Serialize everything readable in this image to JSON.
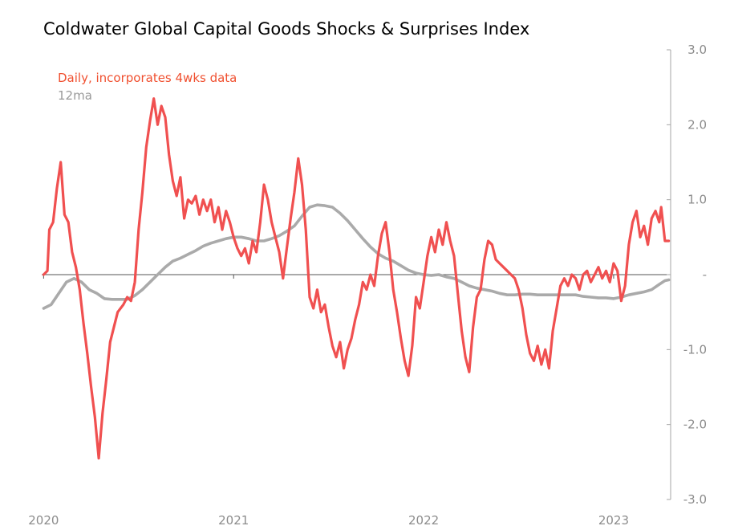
{
  "chart_data": {
    "type": "line",
    "title": "Coldwater Global Capital Goods Shocks & Surprises Index",
    "xlabel": "",
    "ylabel": "",
    "ylim": [
      -3.0,
      3.0
    ],
    "y_ticks": [
      "3.0",
      "2.0",
      "1.0",
      "-",
      "-1.0",
      "-2.0",
      "-3.0"
    ],
    "y_tick_values": [
      3,
      2,
      1,
      0,
      -1,
      -2,
      -3
    ],
    "x_ticks": [
      "2020",
      "2021",
      "2022",
      "2023"
    ],
    "x_tick_values": [
      2020.0,
      2021.0,
      2022.0,
      2023.0
    ],
    "xlim": [
      2019.99,
      2023.3
    ],
    "series": [
      {
        "name": "Daily, incorporates 4wks data",
        "color": "#f05050",
        "points": [
          [
            2020.0,
            0.0
          ],
          [
            2020.02,
            0.05
          ],
          [
            2020.03,
            0.6
          ],
          [
            2020.05,
            0.7
          ],
          [
            2020.07,
            1.15
          ],
          [
            2020.09,
            1.5
          ],
          [
            2020.11,
            0.8
          ],
          [
            2020.13,
            0.7
          ],
          [
            2020.15,
            0.3
          ],
          [
            2020.17,
            0.1
          ],
          [
            2020.19,
            -0.2
          ],
          [
            2020.21,
            -0.65
          ],
          [
            2020.23,
            -1.05
          ],
          [
            2020.25,
            -1.5
          ],
          [
            2020.27,
            -1.9
          ],
          [
            2020.29,
            -2.45
          ],
          [
            2020.31,
            -1.85
          ],
          [
            2020.33,
            -1.4
          ],
          [
            2020.35,
            -0.9
          ],
          [
            2020.37,
            -0.7
          ],
          [
            2020.39,
            -0.5
          ],
          [
            2020.42,
            -0.4
          ],
          [
            2020.44,
            -0.3
          ],
          [
            2020.46,
            -0.35
          ],
          [
            2020.48,
            -0.1
          ],
          [
            2020.5,
            0.6
          ],
          [
            2020.52,
            1.1
          ],
          [
            2020.54,
            1.7
          ],
          [
            2020.56,
            2.05
          ],
          [
            2020.58,
            2.35
          ],
          [
            2020.6,
            2.0
          ],
          [
            2020.62,
            2.25
          ],
          [
            2020.64,
            2.1
          ],
          [
            2020.66,
            1.6
          ],
          [
            2020.68,
            1.25
          ],
          [
            2020.7,
            1.05
          ],
          [
            2020.72,
            1.3
          ],
          [
            2020.74,
            0.75
          ],
          [
            2020.76,
            1.0
          ],
          [
            2020.78,
            0.95
          ],
          [
            2020.8,
            1.05
          ],
          [
            2020.82,
            0.8
          ],
          [
            2020.84,
            1.0
          ],
          [
            2020.86,
            0.85
          ],
          [
            2020.88,
            1.0
          ],
          [
            2020.9,
            0.7
          ],
          [
            2020.92,
            0.9
          ],
          [
            2020.94,
            0.6
          ],
          [
            2020.96,
            0.85
          ],
          [
            2020.98,
            0.7
          ],
          [
            2021.0,
            0.5
          ],
          [
            2021.02,
            0.35
          ],
          [
            2021.04,
            0.25
          ],
          [
            2021.06,
            0.35
          ],
          [
            2021.08,
            0.15
          ],
          [
            2021.1,
            0.45
          ],
          [
            2021.12,
            0.3
          ],
          [
            2021.14,
            0.7
          ],
          [
            2021.16,
            1.2
          ],
          [
            2021.18,
            1.0
          ],
          [
            2021.2,
            0.7
          ],
          [
            2021.22,
            0.5
          ],
          [
            2021.24,
            0.3
          ],
          [
            2021.26,
            -0.05
          ],
          [
            2021.28,
            0.35
          ],
          [
            2021.3,
            0.75
          ],
          [
            2021.32,
            1.1
          ],
          [
            2021.34,
            1.55
          ],
          [
            2021.36,
            1.2
          ],
          [
            2021.38,
            0.6
          ],
          [
            2021.4,
            -0.3
          ],
          [
            2021.42,
            -0.45
          ],
          [
            2021.44,
            -0.2
          ],
          [
            2021.46,
            -0.5
          ],
          [
            2021.48,
            -0.4
          ],
          [
            2021.5,
            -0.7
          ],
          [
            2021.52,
            -0.95
          ],
          [
            2021.54,
            -1.1
          ],
          [
            2021.56,
            -0.9
          ],
          [
            2021.58,
            -1.25
          ],
          [
            2021.6,
            -1.0
          ],
          [
            2021.62,
            -0.85
          ],
          [
            2021.64,
            -0.6
          ],
          [
            2021.66,
            -0.4
          ],
          [
            2021.68,
            -0.1
          ],
          [
            2021.7,
            -0.2
          ],
          [
            2021.72,
            0.0
          ],
          [
            2021.74,
            -0.15
          ],
          [
            2021.76,
            0.25
          ],
          [
            2021.78,
            0.55
          ],
          [
            2021.8,
            0.7
          ],
          [
            2021.82,
            0.3
          ],
          [
            2021.84,
            -0.2
          ],
          [
            2021.86,
            -0.5
          ],
          [
            2021.88,
            -0.85
          ],
          [
            2021.9,
            -1.15
          ],
          [
            2021.92,
            -1.35
          ],
          [
            2021.94,
            -0.95
          ],
          [
            2021.96,
            -0.3
          ],
          [
            2021.98,
            -0.45
          ],
          [
            2022.0,
            -0.1
          ],
          [
            2022.02,
            0.25
          ],
          [
            2022.04,
            0.5
          ],
          [
            2022.06,
            0.3
          ],
          [
            2022.08,
            0.6
          ],
          [
            2022.1,
            0.4
          ],
          [
            2022.12,
            0.7
          ],
          [
            2022.14,
            0.45
          ],
          [
            2022.16,
            0.25
          ],
          [
            2022.18,
            -0.25
          ],
          [
            2022.2,
            -0.75
          ],
          [
            2022.22,
            -1.1
          ],
          [
            2022.24,
            -1.3
          ],
          [
            2022.26,
            -0.7
          ],
          [
            2022.28,
            -0.3
          ],
          [
            2022.3,
            -0.2
          ],
          [
            2022.32,
            0.2
          ],
          [
            2022.34,
            0.45
          ],
          [
            2022.36,
            0.4
          ],
          [
            2022.38,
            0.2
          ],
          [
            2022.4,
            0.15
          ],
          [
            2022.42,
            0.1
          ],
          [
            2022.44,
            0.05
          ],
          [
            2022.46,
            0.0
          ],
          [
            2022.48,
            -0.05
          ],
          [
            2022.5,
            -0.2
          ],
          [
            2022.52,
            -0.45
          ],
          [
            2022.54,
            -0.8
          ],
          [
            2022.56,
            -1.05
          ],
          [
            2022.58,
            -1.15
          ],
          [
            2022.6,
            -0.95
          ],
          [
            2022.62,
            -1.2
          ],
          [
            2022.64,
            -1.0
          ],
          [
            2022.66,
            -1.25
          ],
          [
            2022.68,
            -0.75
          ],
          [
            2022.7,
            -0.45
          ],
          [
            2022.72,
            -0.15
          ],
          [
            2022.74,
            -0.05
          ],
          [
            2022.76,
            -0.15
          ],
          [
            2022.78,
            0.0
          ],
          [
            2022.8,
            -0.05
          ],
          [
            2022.82,
            -0.2
          ],
          [
            2022.84,
            0.0
          ],
          [
            2022.86,
            0.05
          ],
          [
            2022.88,
            -0.1
          ],
          [
            2022.9,
            0.0
          ],
          [
            2022.92,
            0.1
          ],
          [
            2022.94,
            -0.05
          ],
          [
            2022.96,
            0.05
          ],
          [
            2022.98,
            -0.1
          ],
          [
            2023.0,
            0.15
          ],
          [
            2023.02,
            0.05
          ],
          [
            2023.04,
            -0.35
          ],
          [
            2023.06,
            -0.15
          ],
          [
            2023.08,
            0.4
          ],
          [
            2023.1,
            0.7
          ],
          [
            2023.12,
            0.85
          ],
          [
            2023.14,
            0.5
          ],
          [
            2023.16,
            0.65
          ],
          [
            2023.18,
            0.4
          ],
          [
            2023.2,
            0.75
          ],
          [
            2023.22,
            0.85
          ],
          [
            2023.24,
            0.7
          ],
          [
            2023.25,
            0.9
          ],
          [
            2023.27,
            0.45
          ],
          [
            2023.29,
            0.45
          ]
        ]
      },
      {
        "name": "12ma",
        "color": "#aaaaaa",
        "points": [
          [
            2020.0,
            -0.45
          ],
          [
            2020.04,
            -0.4
          ],
          [
            2020.08,
            -0.25
          ],
          [
            2020.12,
            -0.1
          ],
          [
            2020.16,
            -0.05
          ],
          [
            2020.2,
            -0.1
          ],
          [
            2020.24,
            -0.2
          ],
          [
            2020.28,
            -0.25
          ],
          [
            2020.32,
            -0.32
          ],
          [
            2020.36,
            -0.33
          ],
          [
            2020.4,
            -0.33
          ],
          [
            2020.44,
            -0.33
          ],
          [
            2020.48,
            -0.28
          ],
          [
            2020.52,
            -0.2
          ],
          [
            2020.56,
            -0.1
          ],
          [
            2020.6,
            0.0
          ],
          [
            2020.64,
            0.1
          ],
          [
            2020.68,
            0.18
          ],
          [
            2020.72,
            0.22
          ],
          [
            2020.76,
            0.27
          ],
          [
            2020.8,
            0.32
          ],
          [
            2020.84,
            0.38
          ],
          [
            2020.88,
            0.42
          ],
          [
            2020.92,
            0.45
          ],
          [
            2020.96,
            0.48
          ],
          [
            2021.0,
            0.5
          ],
          [
            2021.04,
            0.5
          ],
          [
            2021.08,
            0.48
          ],
          [
            2021.12,
            0.45
          ],
          [
            2021.16,
            0.45
          ],
          [
            2021.2,
            0.48
          ],
          [
            2021.24,
            0.52
          ],
          [
            2021.28,
            0.58
          ],
          [
            2021.32,
            0.65
          ],
          [
            2021.36,
            0.78
          ],
          [
            2021.4,
            0.9
          ],
          [
            2021.44,
            0.93
          ],
          [
            2021.48,
            0.92
          ],
          [
            2021.52,
            0.9
          ],
          [
            2021.56,
            0.82
          ],
          [
            2021.6,
            0.72
          ],
          [
            2021.64,
            0.6
          ],
          [
            2021.68,
            0.48
          ],
          [
            2021.72,
            0.37
          ],
          [
            2021.76,
            0.28
          ],
          [
            2021.8,
            0.22
          ],
          [
            2021.84,
            0.18
          ],
          [
            2021.88,
            0.12
          ],
          [
            2021.92,
            0.06
          ],
          [
            2021.96,
            0.02
          ],
          [
            2022.0,
            0.0
          ],
          [
            2022.04,
            -0.01
          ],
          [
            2022.08,
            0.0
          ],
          [
            2022.12,
            -0.03
          ],
          [
            2022.16,
            -0.05
          ],
          [
            2022.2,
            -0.1
          ],
          [
            2022.24,
            -0.15
          ],
          [
            2022.28,
            -0.18
          ],
          [
            2022.32,
            -0.2
          ],
          [
            2022.36,
            -0.22
          ],
          [
            2022.4,
            -0.25
          ],
          [
            2022.44,
            -0.27
          ],
          [
            2022.48,
            -0.27
          ],
          [
            2022.52,
            -0.26
          ],
          [
            2022.56,
            -0.26
          ],
          [
            2022.6,
            -0.27
          ],
          [
            2022.64,
            -0.27
          ],
          [
            2022.68,
            -0.27
          ],
          [
            2022.72,
            -0.27
          ],
          [
            2022.76,
            -0.27
          ],
          [
            2022.8,
            -0.27
          ],
          [
            2022.84,
            -0.29
          ],
          [
            2022.88,
            -0.3
          ],
          [
            2022.92,
            -0.31
          ],
          [
            2022.96,
            -0.31
          ],
          [
            2023.0,
            -0.32
          ],
          [
            2023.04,
            -0.3
          ],
          [
            2023.08,
            -0.27
          ],
          [
            2023.12,
            -0.25
          ],
          [
            2023.16,
            -0.23
          ],
          [
            2023.2,
            -0.2
          ],
          [
            2023.24,
            -0.13
          ],
          [
            2023.27,
            -0.08
          ],
          [
            2023.29,
            -0.07
          ]
        ]
      }
    ]
  }
}
